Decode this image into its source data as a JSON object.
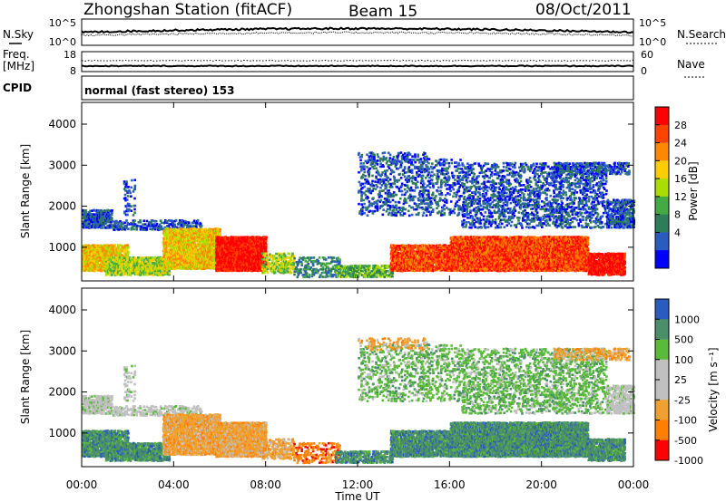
{
  "header": {
    "station": "Zhongshan Station (fitACF)",
    "beam": "Beam 15",
    "date": "08/Oct/2011"
  },
  "panels": {
    "nsky": {
      "left_label": "N.Sky",
      "right_label": "N.Search",
      "ticks": [
        "10^5",
        "10^0"
      ],
      "right_ticks": [
        "10^5",
        "10^0"
      ]
    },
    "freq": {
      "left_label_top": "Freq.",
      "left_label_bottom": "[MHz]",
      "right_label": "Nave",
      "ticks": [
        "18",
        "8"
      ],
      "right_ticks": [
        "60",
        "0"
      ]
    },
    "cpid": {
      "label": "CPID",
      "program": "normal (fast stereo) 153"
    }
  },
  "chart_data": [
    {
      "type": "heatmap",
      "name": "power",
      "ylabel": "Slant Range [km]",
      "yticks": [
        "4000",
        "3000",
        "2000",
        "1000"
      ],
      "ylim": [
        180,
        4530
      ],
      "colorbar": {
        "label": "Power [dB]",
        "ticks": [
          "28",
          "24",
          "20",
          "16",
          "12",
          "8",
          "4"
        ],
        "colors": [
          "#ff0000",
          "#ff4400",
          "#ff8800",
          "#ffcc00",
          "#aadd00",
          "#44aa44",
          "#2e7d5a",
          "#2a5bbf",
          "#0000ff"
        ]
      },
      "xlim": [
        0,
        24
      ]
    },
    {
      "type": "heatmap",
      "name": "velocity",
      "ylabel": "Slant Range [km]",
      "yticks": [
        "4000",
        "3000",
        "2000",
        "1000"
      ],
      "ylim": [
        180,
        4530
      ],
      "colorbar": {
        "label": "Velocity [m s⁻¹]",
        "ticks": [
          "1000",
          "500",
          "100",
          "25",
          "-25",
          "-100",
          "-500",
          "-1000"
        ],
        "colors": [
          "#2a5bbf",
          "#4a8e6a",
          "#5aba3a",
          "#c0c0c0",
          "#c0c0c0",
          "#f0a030",
          "#ff7f00",
          "#ff0000"
        ]
      },
      "xlim": [
        0,
        24
      ]
    }
  ],
  "xaxis": {
    "ticks": [
      "00:00",
      "04:00",
      "08:00",
      "12:00",
      "16:00",
      "20:00",
      "00:00"
    ],
    "label": "Time UT"
  }
}
